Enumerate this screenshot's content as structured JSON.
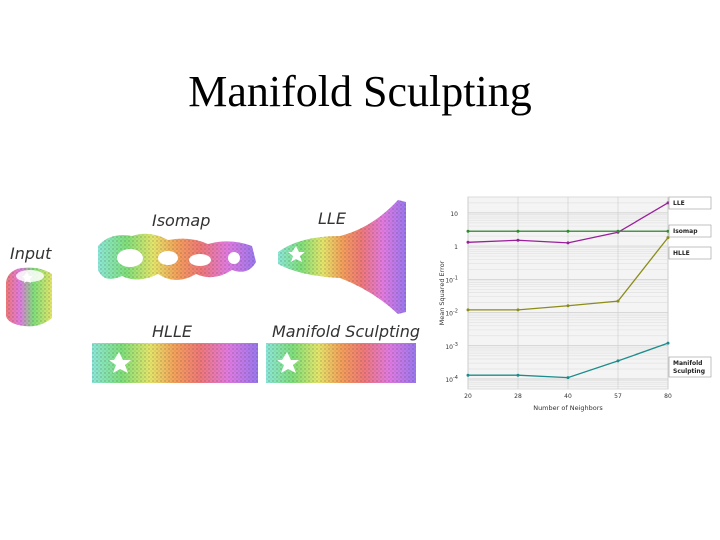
{
  "slide": {
    "title": "Manifold Sculpting"
  },
  "panels": {
    "input": "Input",
    "isomap": "Isomap",
    "lle": "LLE",
    "hlle": "HLLE",
    "manifold_sculpting": "Manifold Sculpting"
  },
  "chart_data": {
    "type": "line",
    "xlabel": "Number of Neighbors",
    "ylabel": "Mean Squared Error",
    "x": [
      20,
      28,
      40,
      57,
      80
    ],
    "x_tick_labels": [
      "20",
      "28",
      "40",
      "57",
      "80"
    ],
    "y_scale": "log",
    "ylim": [
      5e-05,
      30
    ],
    "y_ticks": [
      10,
      1,
      0.1,
      0.01,
      0.001,
      0.0001
    ],
    "y_tick_labels": [
      {
        "base": "10",
        "exp": ""
      },
      {
        "base": "1",
        "exp": ""
      },
      {
        "base": "10",
        "exp": "-1"
      },
      {
        "base": "10",
        "exp": "-2"
      },
      {
        "base": "10",
        "exp": "-3"
      },
      {
        "base": "10",
        "exp": "-4"
      }
    ],
    "grid": true,
    "legend": "right, labels next to line ends",
    "series": [
      {
        "name": "LLE",
        "color": "#9b1f9b",
        "values": [
          1.3,
          1.5,
          1.25,
          2.6,
          20
        ]
      },
      {
        "name": "Isomap",
        "color": "#2e8b2e",
        "values": [
          2.8,
          2.8,
          2.8,
          2.8,
          2.8
        ]
      },
      {
        "name": "HLLE",
        "color": "#8c8c1a",
        "values": [
          0.012,
          0.012,
          0.016,
          0.022,
          1.8
        ]
      },
      {
        "name": "Manifold Sculpting",
        "color": "#1e8c8c",
        "values": [
          0.00013,
          0.00013,
          0.00011,
          0.00035,
          0.0012
        ]
      }
    ]
  }
}
